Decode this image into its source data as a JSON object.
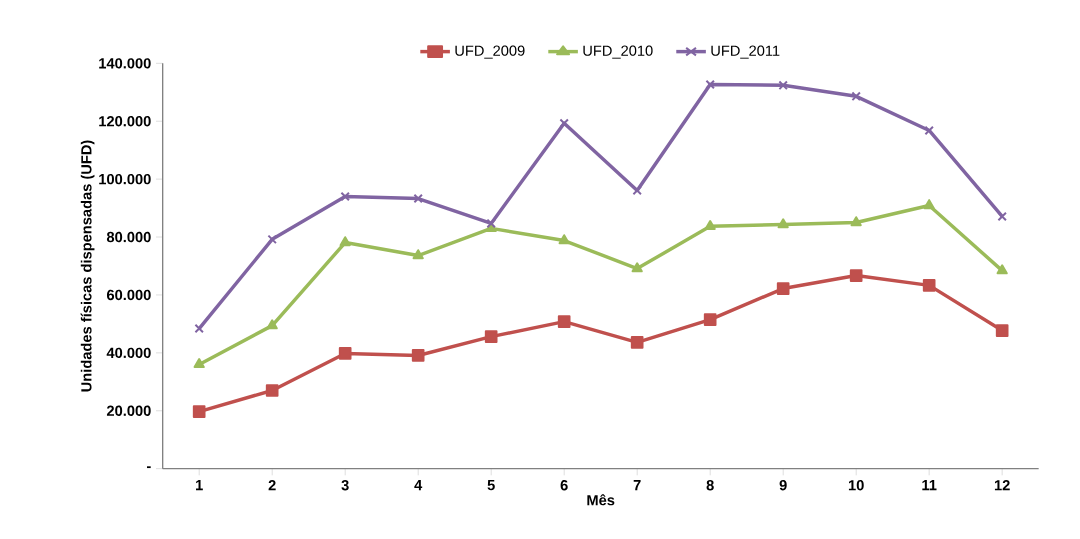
{
  "chart_data": {
    "type": "line",
    "xlabel": "Mês",
    "ylabel": "Unidades físicas dispensadas (UFD)",
    "categories": [
      "1",
      "2",
      "3",
      "4",
      "5",
      "6",
      "7",
      "8",
      "9",
      "10",
      "11",
      "12"
    ],
    "ylim": [
      0,
      140000
    ],
    "yticks": [
      {
        "value": 0,
        "label": "-"
      },
      {
        "value": 20000,
        "label": "20.000"
      },
      {
        "value": 40000,
        "label": "40.000"
      },
      {
        "value": 60000,
        "label": "60.000"
      },
      {
        "value": 80000,
        "label": "80.000"
      },
      {
        "value": 100000,
        "label": "100.000"
      },
      {
        "value": 120000,
        "label": "120.000"
      },
      {
        "value": 140000,
        "label": "140.000"
      }
    ],
    "grid": false,
    "legend": "top",
    "line_style": "solid",
    "series": [
      {
        "name": "UFD_2009",
        "color": "#c0504d",
        "marker": "square",
        "values": [
          19700,
          27000,
          39800,
          39100,
          45600,
          50800,
          43600,
          51500,
          62200,
          66700,
          63300,
          47700
        ]
      },
      {
        "name": "UFD_2010",
        "color": "#9bbb59",
        "marker": "triangle",
        "values": [
          36000,
          49400,
          78100,
          73600,
          83000,
          78800,
          69100,
          83700,
          84300,
          85000,
          90900,
          68400
        ]
      },
      {
        "name": "UFD_2011",
        "color": "#8064a2",
        "marker": "cross",
        "values": [
          48400,
          79200,
          94000,
          93300,
          84700,
          119300,
          96100,
          132700,
          132400,
          128600,
          116800,
          87100
        ]
      }
    ]
  }
}
